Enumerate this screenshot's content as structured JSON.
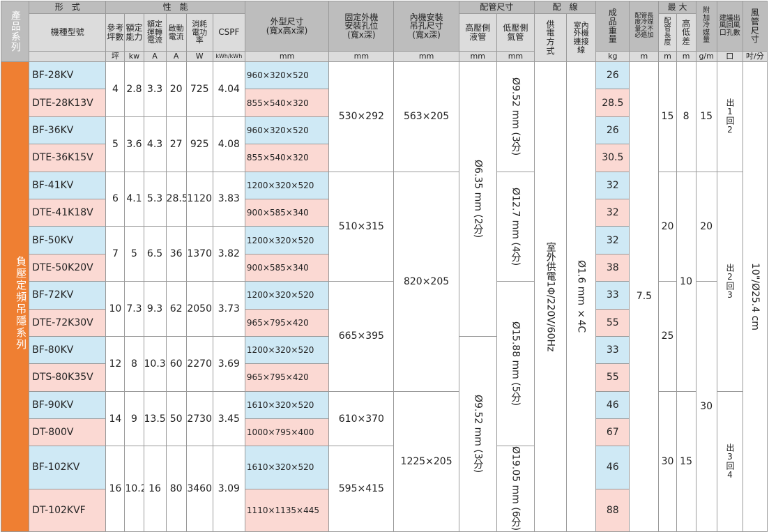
{
  "header": {
    "series": "產品系列",
    "form": "形　式",
    "model": "機種型號",
    "performance": "性　能",
    "perf": [
      "參考\n坪數",
      "額定\n能力",
      "額定\n運轉\n電流",
      "啟動\n電流",
      "消耗\n電功\n率",
      "CSPF"
    ],
    "dimensions": "外型尺寸\n(寬x高x深)",
    "mount": "固定外機\n安裝孔位\n(寬x深)",
    "hanger": "內機安裝\n吊孔尺寸\n(寬x深)",
    "piping": "配管尺寸",
    "liquid": "高壓側\n液管",
    "gas": "低壓側\n氣管",
    "wiring": "配　線",
    "power": "供\n電\n方\n式",
    "wire": "室內\n外機\n連接\n線",
    "weight": "成\n品\n重\n量",
    "no_add": "配管長\n度冷媒\n量之不\n必追加",
    "max": "最 大",
    "pipe_length": "配\n管\n長\n度",
    "height_diff": "高\n低\n差",
    "refrigerant": "附\n加\n冷\n媒\n量",
    "outlets": "建議出\n風回風\n口孔數",
    "duct": "風\n管\n尺\n寸"
  },
  "units": [
    "坪",
    "kw",
    "A",
    "A",
    "W",
    "kWh/kWh",
    "mm",
    "mm",
    "mm",
    "mm",
    "mm",
    "kg",
    "m",
    "m",
    "m",
    "g/m",
    "口",
    "吋/分"
  ],
  "body": {
    "series": "負壓定頻吊隱系列",
    "rows": [
      {
        "model": "BF-28KV",
        "dim": "960×320×520",
        "weight": 26
      },
      {
        "model": "DTE-28K13V",
        "dim": "855×540×320",
        "weight": 28.5
      },
      {
        "model": "BF-36KV",
        "dim": "960×320×520",
        "weight": 26
      },
      {
        "model": "DTE-36K15V",
        "dim": "855×540×320",
        "weight": 30.5
      },
      {
        "model": "BF-41KV",
        "dim": "1200×320×520",
        "weight": 32
      },
      {
        "model": "DTE-41K18V",
        "dim": "900×585×340",
        "weight": 32
      },
      {
        "model": "BF-50KV",
        "dim": "1200×320×520",
        "weight": 32
      },
      {
        "model": "DTE-50K20V",
        "dim": "900×585×340",
        "weight": 38
      },
      {
        "model": "BF-72KV",
        "dim": "1200×320×520",
        "weight": 33
      },
      {
        "model": "DTE-72K30V",
        "dim": "965×795×420",
        "weight": 55
      },
      {
        "model": "BF-80KV",
        "dim": "1200×320×520",
        "weight": 33
      },
      {
        "model": "DTS-80K35V",
        "dim": "965×795×420",
        "weight": 55
      },
      {
        "model": "BF-90KV",
        "dim": "1610×320×520",
        "weight": 46
      },
      {
        "model": "DT-800V",
        "dim": "1000×795×400",
        "weight": 67
      },
      {
        "model": "BF-102KV",
        "dim": "1610×320×520",
        "weight": 46
      },
      {
        "model": "DT-102KVF",
        "dim": "1110×1135×445",
        "weight": 88
      }
    ],
    "pairs": [
      [
        4,
        2.8,
        3.3,
        20,
        725,
        4.04
      ],
      [
        5,
        3.6,
        4.3,
        27,
        925,
        4.08
      ],
      [
        6,
        4.1,
        5.3,
        28.5,
        1120,
        3.83
      ],
      [
        7,
        5,
        6.5,
        36,
        1370,
        3.82
      ],
      [
        10,
        7.3,
        9.3,
        62,
        2050,
        3.73
      ],
      [
        12,
        8,
        10.3,
        60,
        2270,
        3.69
      ],
      [
        14,
        9,
        13.5,
        50,
        2730,
        3.45
      ],
      [
        16,
        10.2,
        16,
        80,
        3460,
        3.09
      ]
    ],
    "mount": [
      "530×292",
      "510×315",
      "665×395",
      "610×370",
      "595×415"
    ],
    "hanger": [
      "563×205",
      "820×205",
      "1225×205"
    ],
    "liquid": [
      "Ø6.35 mm (2分)",
      "Ø9.52 mm (3分)"
    ],
    "gas": [
      "Ø9.52 mm (3分)",
      "Ø12.7 mm (4分)",
      "Ø15.88 mm (5分)",
      "Ø19.05 mm (6分)"
    ],
    "power": "室外供電1Φ/220V/60Hz",
    "wire": "Ø1.6 mm ×4C",
    "no_add": 7.5,
    "pipe_length": [
      15,
      20,
      25,
      30
    ],
    "height_diff": [
      8,
      10,
      15
    ],
    "refrigerant": [
      15,
      20,
      30
    ],
    "outlets": [
      "出1回2",
      "出2回3",
      "出3回4"
    ],
    "duct": "10\"/Ø25.4 cm"
  }
}
